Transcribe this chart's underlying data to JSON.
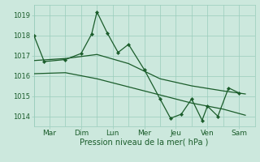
{
  "background_color": "#cce8dd",
  "grid_color": "#99ccbb",
  "line_color": "#1a5c2a",
  "xlabel": "Pression niveau de la mer( hPa )",
  "ylim": [
    1013.5,
    1019.5
  ],
  "yticks": [
    1014,
    1015,
    1016,
    1017,
    1018,
    1019
  ],
  "day_labels": [
    "Mar",
    "Dim",
    "Lun",
    "Mer",
    "Jeu",
    "Ven",
    "Sam"
  ],
  "day_positions": [
    0.5,
    1.5,
    2.5,
    3.5,
    4.5,
    5.5,
    6.5
  ],
  "series1_x": [
    0.0,
    0.33,
    1.0,
    1.5,
    1.83,
    2.0,
    2.33,
    2.67,
    3.0,
    3.5,
    4.0,
    4.33,
    4.67,
    5.0,
    5.33,
    5.5,
    5.83,
    6.17,
    6.5
  ],
  "series1_y": [
    1018.0,
    1016.7,
    1016.8,
    1017.1,
    1018.05,
    1019.15,
    1018.1,
    1017.15,
    1017.55,
    1016.3,
    1014.85,
    1013.9,
    1014.1,
    1014.85,
    1013.8,
    1014.5,
    1014.0,
    1015.4,
    1015.15
  ],
  "series2_x": [
    0.0,
    1.0,
    2.0,
    3.0,
    4.0,
    5.0,
    6.0,
    6.7
  ],
  "series2_y": [
    1016.75,
    1016.85,
    1017.05,
    1016.6,
    1015.85,
    1015.5,
    1015.25,
    1015.1
  ],
  "series3_x": [
    0.0,
    1.0,
    2.0,
    3.0,
    4.0,
    5.0,
    6.0,
    6.7
  ],
  "series3_y": [
    1016.1,
    1016.15,
    1015.85,
    1015.45,
    1015.05,
    1014.65,
    1014.35,
    1014.05
  ],
  "figsize": [
    3.2,
    2.0
  ],
  "dpi": 100
}
